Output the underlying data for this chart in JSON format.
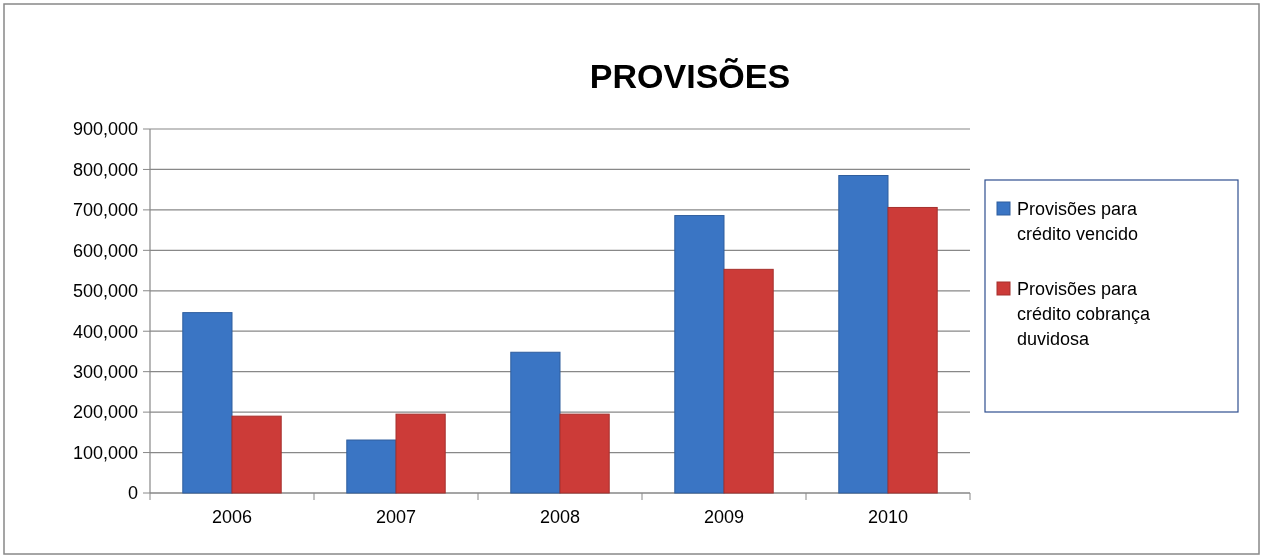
{
  "chart_data": {
    "type": "bar",
    "title": "PROVISÕES",
    "categories": [
      "2006",
      "2007",
      "2008",
      "2009",
      "2010"
    ],
    "series": [
      {
        "name": "Provisões para crédito vencido",
        "color": "#3a75c4",
        "values": [
          446000,
          131000,
          348000,
          686000,
          785000
        ]
      },
      {
        "name": "Provisões para crédito cobrança duvidosa",
        "color": "#cc3b38",
        "values": [
          190000,
          195000,
          195000,
          553000,
          706000
        ]
      }
    ],
    "ylim": [
      0,
      900000
    ],
    "yticks": [
      {
        "value": 0,
        "label": "0"
      },
      {
        "value": 100000,
        "label": "100,000"
      },
      {
        "value": 200000,
        "label": "200,000"
      },
      {
        "value": 300000,
        "label": "300,000"
      },
      {
        "value": 400000,
        "label": "400,000"
      },
      {
        "value": 500000,
        "label": "500,000"
      },
      {
        "value": 600000,
        "label": "600,000"
      },
      {
        "value": 700000,
        "label": "700,000"
      },
      {
        "value": 800000,
        "label": "800,000"
      },
      {
        "value": 900000,
        "label": "900,000"
      }
    ],
    "grid": "y",
    "legend": "right"
  }
}
